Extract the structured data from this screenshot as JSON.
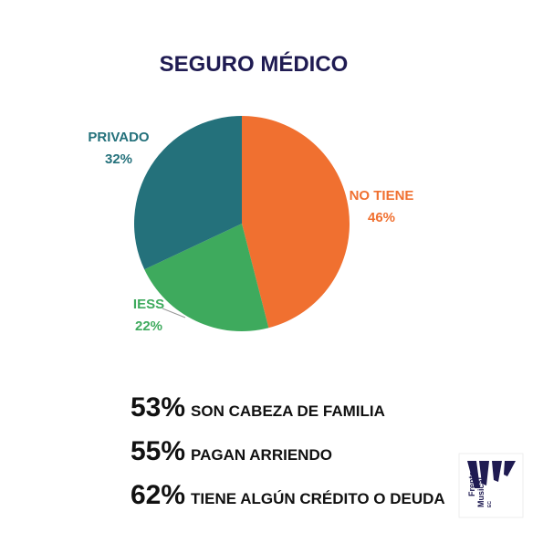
{
  "chart_data": {
    "type": "pie",
    "title": "SEGURO MÉDICO",
    "categories": [
      "NO TIENE",
      "IESS",
      "PRIVADO"
    ],
    "values": [
      46,
      22,
      32
    ],
    "value_labels": [
      "46%",
      "22%",
      "32%"
    ],
    "colors": [
      "#f07030",
      "#3eaa5d",
      "#24717b"
    ]
  },
  "stats": [
    {
      "figure": "53%",
      "text": "SON CABEZA DE FAMILIA"
    },
    {
      "figure": "55%",
      "text": "PAGAN ARRIENDO"
    },
    {
      "figure": "62%",
      "text": "TIENE ALGÚN CRÉDITO O DEUDA"
    }
  ],
  "logo": {
    "line1": "Frente",
    "line2": "Musical",
    "line3": "EC"
  }
}
